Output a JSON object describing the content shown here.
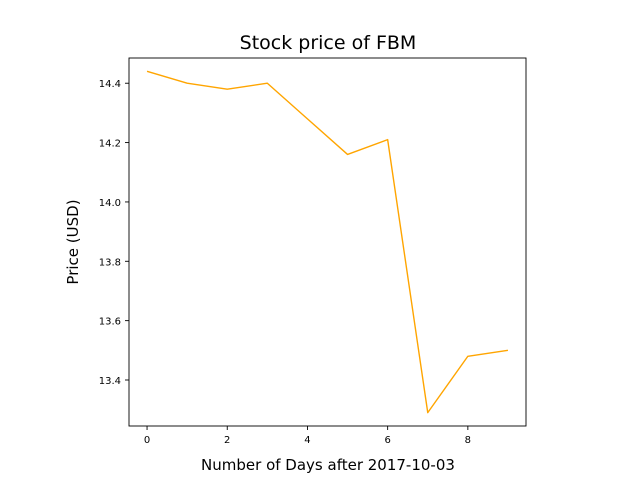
{
  "chart_data": {
    "type": "line",
    "title": "Stock price of FBM",
    "xlabel": "Number of Days after 2017-10-03",
    "ylabel": "Price (USD)",
    "x": [
      0,
      1,
      2,
      3,
      4,
      5,
      6,
      7,
      8,
      9
    ],
    "series": [
      {
        "values": [
          14.44,
          14.4,
          14.38,
          14.4,
          14.28,
          14.16,
          14.21,
          13.29,
          13.48,
          13.5
        ],
        "color": "#ffa500"
      }
    ],
    "xlim": [
      -0.45,
      9.45
    ],
    "ylim": [
      13.245,
      14.485
    ],
    "xticks": [
      0,
      2,
      4,
      6,
      8
    ],
    "xtick_labels": [
      "0",
      "2",
      "4",
      "6",
      "8"
    ],
    "yticks": [
      13.4,
      13.6,
      13.8,
      14.0,
      14.2,
      14.4
    ],
    "ytick_labels": [
      "13.4",
      "13.6",
      "13.8",
      "14.0",
      "14.2",
      "14.4"
    ],
    "grid": false,
    "legend": "none"
  }
}
